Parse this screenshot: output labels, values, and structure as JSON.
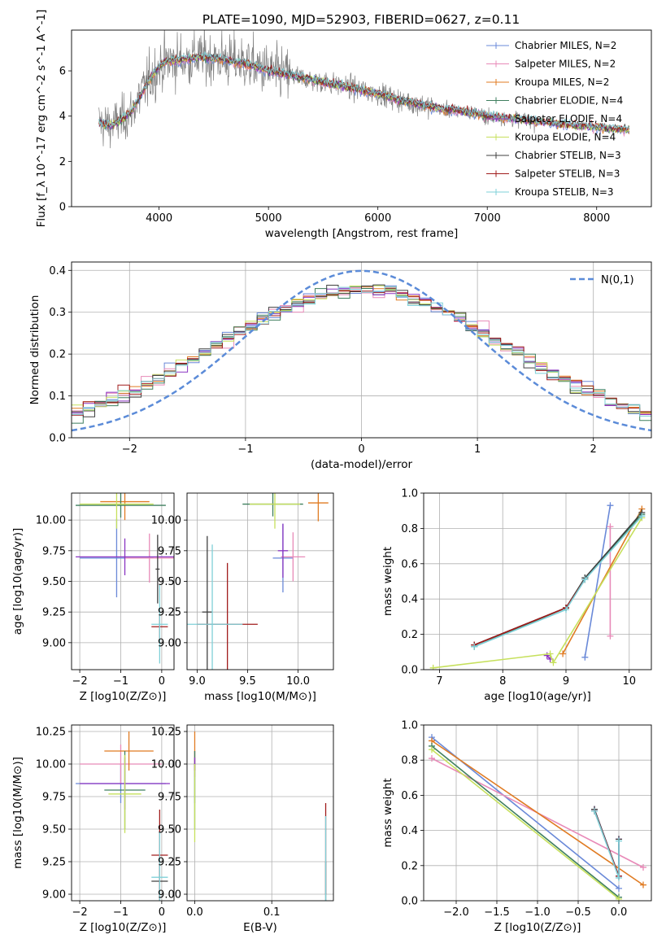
{
  "figure_title": "PLATE=1090, MJD=52903, FIBERID=0627, z=0.11",
  "models": [
    {
      "name": "Chabrier MILES, N_SSP=2",
      "color": "#6a89d8"
    },
    {
      "name": "Salpeter MILES, N_SSP=2",
      "color": "#e88ab8"
    },
    {
      "name": "Kroupa MILES, N_SSP=2",
      "color": "#e07b22"
    },
    {
      "name": "Chabrier ELODIE, N_SSP=4",
      "color": "#3f7f5f"
    },
    {
      "name": "Salpeter ELODIE, N_SSP=4",
      "color": "#8a35c2"
    },
    {
      "name": "Kroupa ELODIE, N_SSP=4",
      "color": "#c6e05c"
    },
    {
      "name": "Chabrier STELIB, N_SSP=3",
      "color": "#404040"
    },
    {
      "name": "Salpeter STELIB, N_SSP=3",
      "color": "#a01c1c"
    },
    {
      "name": "Kroupa STELIB, N_SSP=3",
      "color": "#7fd0d8"
    }
  ],
  "chart_data": [
    {
      "id": "spectrum",
      "type": "line",
      "title": "PLATE=1090, MJD=52903, FIBERID=0627, z=0.11",
      "xlabel": "wavelength [Angstrom, rest frame]",
      "ylabel": "Flux [f_λ 10^-17 erg cm^-2 s^-1 A^-1]",
      "xlim": [
        3200,
        8500
      ],
      "ylim": [
        0,
        7.8
      ],
      "xticks": [
        "4000",
        "5000",
        "6000",
        "7000",
        "8000"
      ],
      "yticks": [
        "0",
        "2",
        "4",
        "6"
      ],
      "data_color": "#808080",
      "continuum": {
        "x": [
          3450,
          3550,
          3650,
          3750,
          3850,
          3950,
          4050,
          4200,
          4400,
          4600,
          4800,
          5000,
          5200,
          5400,
          5600,
          5800,
          6000,
          6200,
          6400,
          6600,
          6800,
          7000,
          7200,
          7400,
          7600,
          7800,
          8000,
          8300
        ],
        "y": [
          3.7,
          3.6,
          3.8,
          4.2,
          5.1,
          5.9,
          6.4,
          6.5,
          6.6,
          6.5,
          6.3,
          6.0,
          5.8,
          5.6,
          5.4,
          5.2,
          5.0,
          4.7,
          4.5,
          4.3,
          4.2,
          4.0,
          3.9,
          3.8,
          3.7,
          3.6,
          3.5,
          3.4
        ]
      },
      "grid": false,
      "legend": "right"
    },
    {
      "id": "residuals",
      "type": "histogram",
      "xlabel": "(data-model)/error",
      "ylabel": "Normed distribution",
      "xlim": [
        -2.5,
        2.5
      ],
      "ylim": [
        0,
        0.42
      ],
      "xticks": [
        "−2",
        "−1",
        "0",
        "1",
        "2"
      ],
      "yticks": [
        "0.0",
        "0.1",
        "0.2",
        "0.3",
        "0.4"
      ],
      "reference_curve": {
        "label": "N(0,1)",
        "color": "#5b8bd8"
      },
      "grid": true,
      "legend": "top-right"
    },
    {
      "id": "age_vs_Z",
      "type": "errorbar",
      "xlabel": "Z [log10(Z/Z⊙)]",
      "ylabel": "age  [log10(age/yr)]",
      "xlim": [
        -2.2,
        0.3
      ],
      "ylim": [
        8.78,
        10.22
      ],
      "xticks": [
        "−2",
        "−1",
        "0"
      ],
      "yticks": [
        "9.00",
        "9.25",
        "9.50",
        "9.75",
        "10.00"
      ],
      "points": [
        {
          "model": 0,
          "x": -1.1,
          "xerr": 0.9,
          "y": 9.69,
          "yerr": 0.32
        },
        {
          "model": 1,
          "x": -0.3,
          "xerr": 0.6,
          "y": 9.69,
          "yerr": 0.2
        },
        {
          "model": 2,
          "x": -0.9,
          "xerr": 0.6,
          "y": 10.15,
          "yerr": 0.15
        },
        {
          "model": 3,
          "x": -1.0,
          "xerr": 1.1,
          "y": 10.12,
          "yerr": 0.1
        },
        {
          "model": 4,
          "x": -0.9,
          "xerr": 1.2,
          "y": 9.7,
          "yerr": 0.15
        },
        {
          "model": 5,
          "x": -1.1,
          "xerr": 0.9,
          "y": 10.13,
          "yerr": 0.2
        },
        {
          "model": 6,
          "x": -0.1,
          "xerr": 0.05,
          "y": 9.6,
          "yerr": 0.28
        },
        {
          "model": 7,
          "x": -0.05,
          "xerr": 0.2,
          "y": 9.13,
          "yerr": 0.1
        },
        {
          "model": 8,
          "x": -0.05,
          "xerr": 0.2,
          "y": 9.15,
          "yerr": 0.32
        }
      ]
    },
    {
      "id": "age_vs_mass",
      "type": "errorbar",
      "xlabel": "mass [log10(M/M⊙)]",
      "ylabel": "",
      "xlim": [
        8.9,
        10.35
      ],
      "ylim": [
        8.78,
        10.22
      ],
      "xticks": [
        "9.0",
        "9.5",
        "10.0"
      ],
      "yticks": [
        "9.00",
        "9.25",
        "9.50",
        "9.75",
        "10.00"
      ],
      "points": [
        {
          "model": 0,
          "x": 9.85,
          "xerr": 0.1,
          "y": 9.69,
          "yerr": 0.28
        },
        {
          "model": 1,
          "x": 9.95,
          "xerr": 0.12,
          "y": 9.7,
          "yerr": 0.2
        },
        {
          "model": 2,
          "x": 10.2,
          "xerr": 0.1,
          "y": 10.14,
          "yerr": 0.15
        },
        {
          "model": 3,
          "x": 9.75,
          "xerr": 0.3,
          "y": 10.13,
          "yerr": 0.1
        },
        {
          "model": 4,
          "x": 9.85,
          "xerr": 0.05,
          "y": 9.75,
          "yerr": 0.22
        },
        {
          "model": 5,
          "x": 9.77,
          "xerr": 0.25,
          "y": 10.13,
          "yerr": 0.2
        },
        {
          "model": 6,
          "x": 9.1,
          "xerr": 0.05,
          "y": 9.25,
          "yerr": 0.62
        },
        {
          "model": 7,
          "x": 9.3,
          "xerr": 0.3,
          "y": 9.15,
          "yerr": 0.5
        },
        {
          "model": 8,
          "x": 9.15,
          "xerr": 0.3,
          "y": 9.15,
          "yerr": 0.65
        }
      ]
    },
    {
      "id": "massweight_vs_age",
      "type": "line",
      "xlabel": "age  [log10(age/yr)]",
      "ylabel": "mass weight",
      "xlim": [
        6.75,
        10.35
      ],
      "ylim": [
        0,
        1
      ],
      "xticks": [
        "7",
        "8",
        "9",
        "10"
      ],
      "yticks": [
        "0.0",
        "0.2",
        "0.4",
        "0.6",
        "0.8",
        "1.0"
      ],
      "series": [
        {
          "model": 0,
          "x": [
            9.3,
            9.7
          ],
          "y": [
            0.07,
            0.93
          ]
        },
        {
          "model": 1,
          "x": [
            9.7,
            9.7
          ],
          "y": [
            0.19,
            0.81
          ]
        },
        {
          "model": 2,
          "x": [
            8.95,
            10.2
          ],
          "y": [
            0.09,
            0.91
          ]
        },
        {
          "model": 3,
          "x": [
            7.55,
            9.0,
            9.3,
            10.2
          ],
          "y": [
            0.13,
            0.35,
            0.52,
            0.88
          ]
        },
        {
          "model": 4,
          "x": [
            8.7,
            8.75
          ],
          "y": [
            0.08,
            0.06
          ]
        },
        {
          "model": 5,
          "x": [
            6.9,
            8.75,
            8.8,
            10.2
          ],
          "y": [
            0.01,
            0.09,
            0.04,
            0.86
          ]
        },
        {
          "model": 6,
          "x": [
            7.55,
            9.0,
            9.3,
            10.2
          ],
          "y": [
            0.14,
            0.35,
            0.52,
            0.89
          ]
        },
        {
          "model": 7,
          "x": [
            7.55,
            9.0,
            9.3
          ],
          "y": [
            0.14,
            0.35,
            0.51
          ]
        },
        {
          "model": 8,
          "x": [
            7.55,
            9.0,
            9.3,
            10.2
          ],
          "y": [
            0.13,
            0.34,
            0.51,
            0.87
          ]
        }
      ],
      "grid": true
    },
    {
      "id": "mass_vs_Z",
      "type": "errorbar",
      "xlabel": "Z [log10(Z/Z⊙)]",
      "ylabel": "mass [log10(M/M⊙)]",
      "xlim": [
        -2.2,
        0.3
      ],
      "ylim": [
        8.95,
        10.3
      ],
      "xticks": [
        "−2",
        "−1",
        "0"
      ],
      "yticks": [
        "9.00",
        "9.25",
        "9.50",
        "9.75",
        "10.00",
        "10.25"
      ],
      "points": [
        {
          "model": 0,
          "x": -1.0,
          "xerr": 1.1,
          "y": 9.85,
          "yerr": 0.15
        },
        {
          "model": 1,
          "x": -1.0,
          "xerr": 1.0,
          "y": 10.0,
          "yerr": 0.15
        },
        {
          "model": 2,
          "x": -0.8,
          "xerr": 0.6,
          "y": 10.1,
          "yerr": 0.15
        },
        {
          "model": 3,
          "x": -0.9,
          "xerr": 0.5,
          "y": 9.8,
          "yerr": 0.3
        },
        {
          "model": 4,
          "x": -0.9,
          "xerr": 1.1,
          "y": 9.85,
          "yerr": 0.2
        },
        {
          "model": 5,
          "x": -0.9,
          "xerr": 0.4,
          "y": 9.77,
          "yerr": 0.3
        },
        {
          "model": 6,
          "x": -0.05,
          "xerr": 0.2,
          "y": 9.1,
          "yerr": 0.12
        },
        {
          "model": 7,
          "x": -0.05,
          "xerr": 0.2,
          "y": 9.3,
          "yerr": 0.35
        },
        {
          "model": 8,
          "x": -0.05,
          "xerr": 0.2,
          "y": 9.13,
          "yerr": 0.35
        }
      ]
    },
    {
      "id": "mass_vs_EBV",
      "type": "errorbar",
      "xlabel": "E(B-V)",
      "ylabel": "",
      "xlim": [
        -0.01,
        0.18
      ],
      "ylim": [
        8.95,
        10.3
      ],
      "xticks": [
        "0.0",
        "0.1"
      ],
      "yticks": [
        "9.00",
        "9.25",
        "9.50",
        "9.75",
        "10.00",
        "10.25"
      ],
      "points": [
        {
          "model": 0,
          "x": 0.0,
          "xerr": 0,
          "y": 9.85,
          "yerr": 0.15
        },
        {
          "model": 1,
          "x": 0.0,
          "xerr": 0,
          "y": 10.0,
          "yerr": 0.1
        },
        {
          "model": 2,
          "x": 0.0,
          "xerr": 0,
          "y": 10.1,
          "yerr": 0.15
        },
        {
          "model": 3,
          "x": 0.0,
          "xerr": 0,
          "y": 9.8,
          "yerr": 0.3
        },
        {
          "model": 4,
          "x": 0.0,
          "xerr": 0,
          "y": 10.0,
          "yerr": 0.05
        },
        {
          "model": 5,
          "x": 0.0,
          "xerr": 0,
          "y": 9.7,
          "yerr": 0.3
        },
        {
          "model": 6,
          "x": 0.17,
          "xerr": 0,
          "y": 9.1,
          "yerr": 0.15
        },
        {
          "model": 7,
          "x": 0.17,
          "xerr": 0,
          "y": 9.35,
          "yerr": 0.35
        },
        {
          "model": 8,
          "x": 0.17,
          "xerr": 0,
          "y": 9.2,
          "yerr": 0.4
        }
      ]
    },
    {
      "id": "massweight_vs_Z",
      "type": "line",
      "xlabel": "Z [log10(Z/Z⊙)]",
      "ylabel": "mass weight",
      "xlim": [
        -2.4,
        0.4
      ],
      "ylim": [
        0,
        1
      ],
      "xticks": [
        "−2.0",
        "−1.5",
        "−1.0",
        "−0.5",
        "0.0"
      ],
      "yticks": [
        "0.0",
        "0.2",
        "0.4",
        "0.6",
        "0.8",
        "1.0"
      ],
      "series": [
        {
          "model": 0,
          "x": [
            -2.3,
            0.0
          ],
          "y": [
            0.93,
            0.07
          ]
        },
        {
          "model": 1,
          "x": [
            -2.3,
            0.3
          ],
          "y": [
            0.81,
            0.19
          ]
        },
        {
          "model": 2,
          "x": [
            -2.3,
            0.3
          ],
          "y": [
            0.91,
            0.09
          ]
        },
        {
          "model": 3,
          "x": [
            -2.3,
            0.0
          ],
          "y": [
            0.88,
            0.02
          ]
        },
        {
          "model": 4,
          "x": [
            -0.3,
            0.0,
            0.0
          ],
          "y": [
            0.52,
            0.14,
            0.35
          ]
        },
        {
          "model": 5,
          "x": [
            -2.3,
            0.0
          ],
          "y": [
            0.86,
            0.01
          ]
        },
        {
          "model": 6,
          "x": [
            -0.3,
            0.0,
            0.0
          ],
          "y": [
            0.52,
            0.14,
            0.35
          ]
        },
        {
          "model": 7,
          "x": [
            -0.3,
            0.0
          ],
          "y": [
            0.51,
            0.14
          ]
        },
        {
          "model": 8,
          "x": [
            -0.3,
            0.0,
            0.0
          ],
          "y": [
            0.51,
            0.13,
            0.34
          ]
        }
      ],
      "grid": true
    }
  ]
}
